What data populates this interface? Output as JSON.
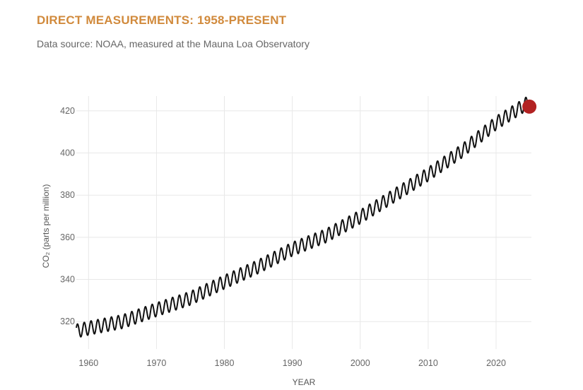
{
  "header": {
    "title": "DIRECT MEASUREMENTS: 1958-PRESENT",
    "subtitle": "Data source: NOAA, measured at the Mauna Loa Observatory"
  },
  "colors": {
    "title": "#d18a3c",
    "line": "#111111",
    "grid": "#e8e8e8",
    "marker": "#b22222"
  },
  "chart_data": {
    "type": "line",
    "title": "DIRECT MEASUREMENTS: 1958-PRESENT",
    "subtitle": "Data source: NOAA, measured at the Mauna Loa Observatory",
    "xlabel": "YEAR",
    "ylabel": "CO₂ (parts per million)",
    "xlim": [
      1958.2,
      2025.2
    ],
    "ylim": [
      307,
      427
    ],
    "xticks": [
      1960,
      1970,
      1980,
      1990,
      2000,
      2010,
      2020
    ],
    "yticks": [
      320,
      340,
      360,
      380,
      400,
      420
    ],
    "grid": true,
    "legend": "none",
    "series": [
      {
        "x": [
          1958.2,
          1960,
          1965,
          1970,
          1975,
          1980,
          1985,
          1990,
          1995,
          2000,
          2005,
          2010,
          2015,
          2020,
          2024.8
        ],
        "y": [
          315.5,
          316.9,
          320.0,
          325.7,
          331.1,
          338.8,
          346.1,
          354.4,
          360.8,
          369.7,
          379.8,
          389.9,
          401.0,
          414.2,
          424.0
        ],
        "seasonal_amplitude_ppm": 6.5
      }
    ],
    "annotations": [
      {
        "type": "marker",
        "x": 2024.9,
        "y": 422
      }
    ]
  }
}
